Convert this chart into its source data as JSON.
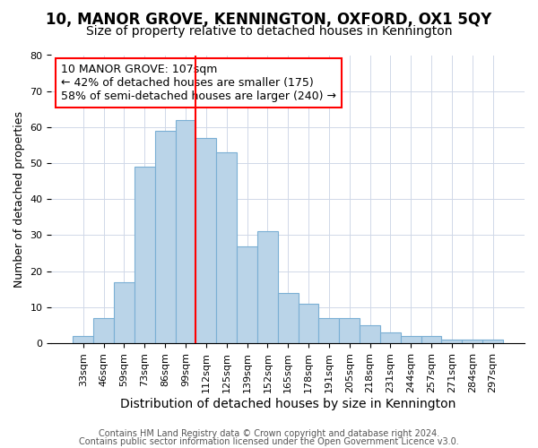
{
  "title": "10, MANOR GROVE, KENNINGTON, OXFORD, OX1 5QY",
  "subtitle": "Size of property relative to detached houses in Kennington",
  "xlabel": "Distribution of detached houses by size in Kennington",
  "ylabel": "Number of detached properties",
  "bar_labels": [
    "33sqm",
    "46sqm",
    "59sqm",
    "73sqm",
    "86sqm",
    "99sqm",
    "112sqm",
    "125sqm",
    "139sqm",
    "152sqm",
    "165sqm",
    "178sqm",
    "191sqm",
    "205sqm",
    "218sqm",
    "231sqm",
    "244sqm",
    "257sqm",
    "271sqm",
    "284sqm",
    "297sqm"
  ],
  "bar_values": [
    2,
    7,
    17,
    49,
    59,
    62,
    57,
    53,
    27,
    31,
    14,
    11,
    7,
    7,
    5,
    3,
    2,
    2,
    1,
    1,
    1
  ],
  "bar_color": "#bad4e8",
  "bar_edge_color": "#7aafd4",
  "vline_color": "red",
  "vline_x_index": 5.5,
  "annotation_text": "10 MANOR GROVE: 107sqm\n← 42% of detached houses are smaller (175)\n58% of semi-detached houses are larger (240) →",
  "annotation_box_color": "white",
  "annotation_box_edge_color": "red",
  "ylim": [
    0,
    80
  ],
  "yticks": [
    0,
    10,
    20,
    30,
    40,
    50,
    60,
    70,
    80
  ],
  "footer1": "Contains HM Land Registry data © Crown copyright and database right 2024.",
  "footer2": "Contains public sector information licensed under the Open Government Licence v3.0.",
  "title_fontsize": 12,
  "subtitle_fontsize": 10,
  "xlabel_fontsize": 10,
  "ylabel_fontsize": 9,
  "tick_fontsize": 8,
  "annotation_fontsize": 9,
  "footer_fontsize": 7
}
